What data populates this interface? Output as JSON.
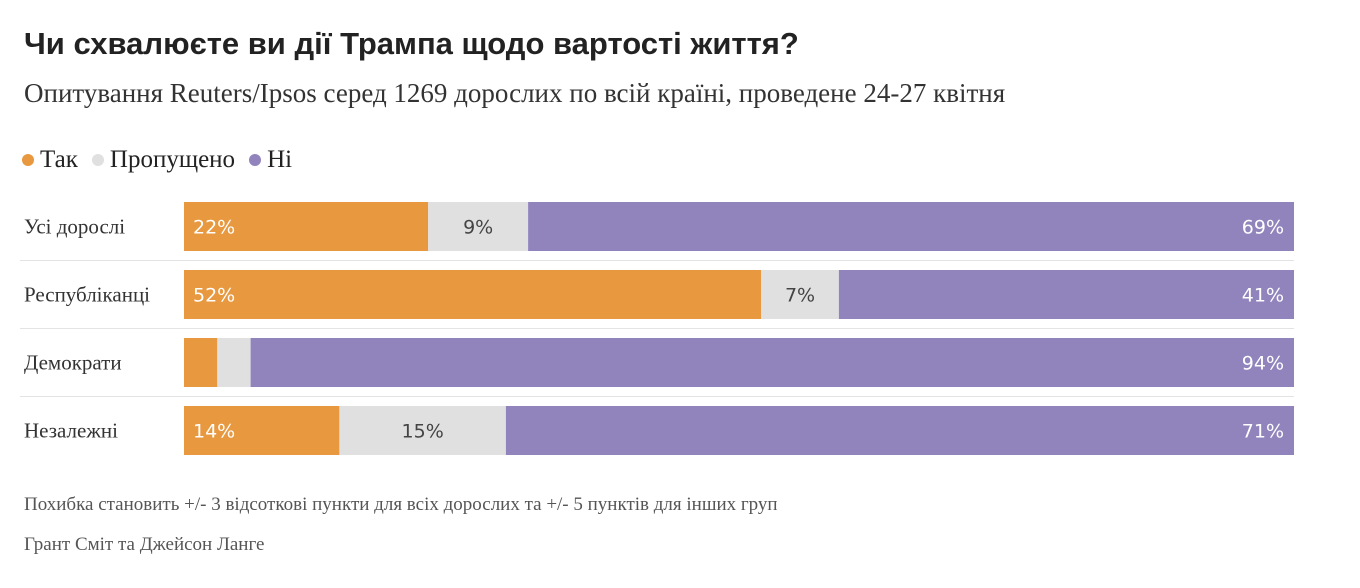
{
  "header": {
    "title": "Чи схвалюєте ви дії Трампа щодо вартості життя?",
    "subtitle": "Опитування Reuters/Ipsos серед 1269 дорослих по всій країні, проведене 24-27 квітня"
  },
  "footer": {
    "note": "Похибка становить +/- 3 відсоткові пункти для всіх дорослих та +/- 5 пунктів для інших груп",
    "credit": "Грант Сміт та Джейсон Ланге"
  },
  "colors": {
    "yes": "#E8983F",
    "skipped": "#E0E0E0",
    "no": "#9184BD"
  },
  "chart_data": {
    "type": "bar",
    "orientation": "horizontal",
    "stacked": true,
    "percent": true,
    "title": "Чи схвалюєте ви дії Трампа щодо вартості життя?",
    "subtitle": "Опитування Reuters/Ipsos серед 1269 дорослих по всій країні, проведене 24-27 квітня",
    "categories": [
      "Усі дорослі",
      "Республіканці",
      "Демократи",
      "Незалежні"
    ],
    "series": [
      {
        "name": "Так",
        "values": [
          22,
          52,
          3,
          14
        ],
        "labels": [
          "22%",
          "52%",
          "",
          "14%"
        ]
      },
      {
        "name": "Пропущено",
        "values": [
          9,
          7,
          3,
          15
        ],
        "labels": [
          "9%",
          "7%",
          "",
          "15%"
        ]
      },
      {
        "name": "Ні",
        "values": [
          69,
          41,
          94,
          71
        ],
        "labels": [
          "69%",
          "41%",
          "94%",
          "71%"
        ]
      }
    ],
    "xlim": [
      0,
      100
    ],
    "legend": "top-left",
    "grid": false
  }
}
